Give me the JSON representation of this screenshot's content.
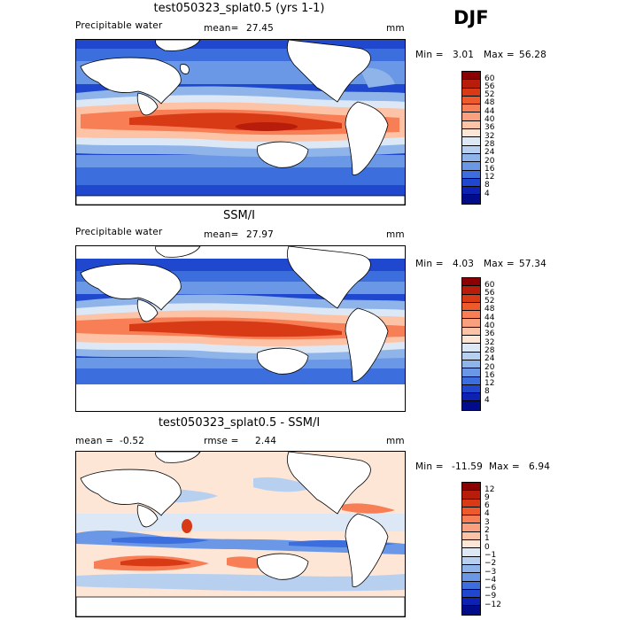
{
  "figure": {
    "season": "DJF"
  },
  "panels": [
    {
      "id": "model",
      "title": "test050323_splat0.5 (yrs 1-1)",
      "left_label": "Precipitable water",
      "stat_label": "mean=",
      "stat_value": "27.45",
      "stat2_label": "",
      "stat2_value": "",
      "units": "mm",
      "min_label": "Min =",
      "min_value": "3.01",
      "max_label": "Max =",
      "max_value": "56.28",
      "colorbar": {
        "levels": [
          "60",
          "56",
          "52",
          "48",
          "44",
          "40",
          "36",
          "32",
          "28",
          "24",
          "20",
          "16",
          "12",
          "8",
          "4"
        ],
        "colors": [
          "#8b0000",
          "#b81c0a",
          "#d83a16",
          "#ee5a2c",
          "#f77e55",
          "#fba07f",
          "#fdc3a7",
          "#fee6d6",
          "#dde8f6",
          "#b8d0f0",
          "#8fb4ea",
          "#6a98e6",
          "#3c6fdd",
          "#1f48cf",
          "#0d21b3",
          "#000c8a"
        ]
      }
    },
    {
      "id": "obs",
      "title": "SSM/I",
      "left_label": "Precipitable water",
      "stat_label": "mean=",
      "stat_value": "27.97",
      "stat2_label": "",
      "stat2_value": "",
      "units": "mm",
      "min_label": "Min =",
      "min_value": "4.03",
      "max_label": "Max =",
      "max_value": "57.34",
      "colorbar": {
        "levels": [
          "60",
          "56",
          "52",
          "48",
          "44",
          "40",
          "36",
          "32",
          "28",
          "24",
          "20",
          "16",
          "12",
          "8",
          "4"
        ],
        "colors": [
          "#8b0000",
          "#b81c0a",
          "#d83a16",
          "#ee5a2c",
          "#f77e55",
          "#fba07f",
          "#fdc3a7",
          "#fee6d6",
          "#dde8f6",
          "#b8d0f0",
          "#8fb4ea",
          "#6a98e6",
          "#3c6fdd",
          "#1f48cf",
          "#0d21b3",
          "#000c8a"
        ]
      }
    },
    {
      "id": "diff",
      "title": "test050323_splat0.5 - SSM/I",
      "left_label": "",
      "stat_label": "mean =",
      "stat_value": "-0.52",
      "stat2_label": "rmse =",
      "stat2_value": "2.44",
      "units": "mm",
      "min_label": "Min =",
      "min_value": "-11.59",
      "max_label": "Max =",
      "max_value": "6.94",
      "colorbar": {
        "levels": [
          "12",
          "9",
          "6",
          "4",
          "3",
          "2",
          "1",
          "0",
          "−1",
          "−2",
          "−3",
          "−4",
          "−6",
          "−9",
          "−12"
        ],
        "colors": [
          "#8b0000",
          "#b81c0a",
          "#d83a16",
          "#ee5a2c",
          "#f77e55",
          "#fba07f",
          "#fdc3a7",
          "#fee6d6",
          "#dde8f6",
          "#b8d0f0",
          "#8fb4ea",
          "#6a98e6",
          "#3c6fdd",
          "#1f48cf",
          "#0d21b3",
          "#000c8a"
        ]
      }
    }
  ]
}
